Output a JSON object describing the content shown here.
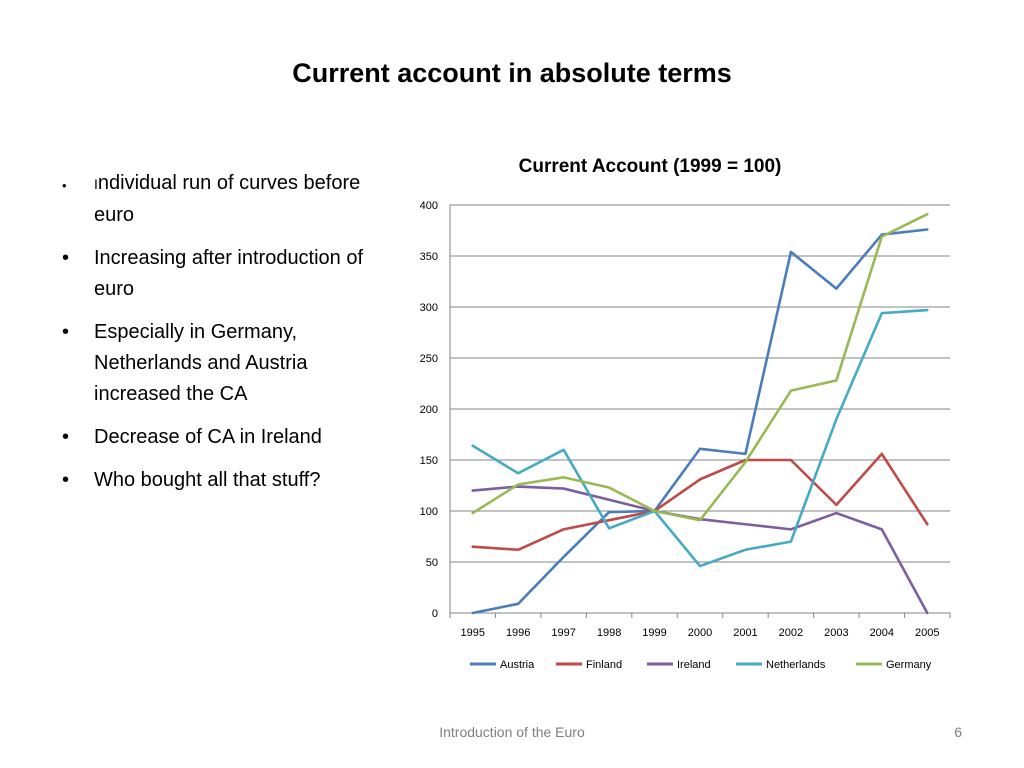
{
  "slide": {
    "title": "Current account in absolute terms",
    "bullets": [
      {
        "lead": "I",
        "text": "ndividual run of curves before euro"
      },
      {
        "text": "Increasing after introduction of euro"
      },
      {
        "text": "Especially in Germany, Netherlands and Austria increased the CA"
      },
      {
        "text": "Decrease of CA in Ireland"
      },
      {
        "text": "Who bought all that stuff?"
      }
    ],
    "footer": "Introduction of the Euro",
    "page_number": "6"
  },
  "chart_data": {
    "type": "line",
    "title": "Current Account (1999 = 100)",
    "xlabel": "",
    "ylabel": "",
    "x": [
      "1995",
      "1996",
      "1997",
      "1998",
      "1999",
      "2000",
      "2001",
      "2002",
      "2003",
      "2004",
      "2005"
    ],
    "ylim": [
      0,
      400
    ],
    "yticks": [
      0,
      50,
      100,
      150,
      200,
      250,
      300,
      350,
      400
    ],
    "grid": true,
    "legend_position": "bottom",
    "series": [
      {
        "name": "Austria",
        "color": "#4a7ebb",
        "values": [
          0,
          9,
          55,
          99,
          100,
          161,
          156,
          354,
          318,
          371,
          376
        ]
      },
      {
        "name": "Finland",
        "color": "#be4b48",
        "values": [
          65,
          62,
          82,
          91,
          100,
          131,
          150,
          150,
          106,
          156,
          87
        ]
      },
      {
        "name": "Ireland",
        "color": "#7d5fa0",
        "values": [
          120,
          124,
          122,
          111,
          100,
          92,
          87,
          82,
          98,
          82,
          0
        ]
      },
      {
        "name": "Netherlands",
        "color": "#46aac5",
        "values": [
          164,
          137,
          160,
          83,
          100,
          46,
          62,
          70,
          190,
          294,
          297
        ]
      },
      {
        "name": "Germany",
        "color": "#98b954",
        "values": [
          98,
          126,
          133,
          123,
          100,
          91,
          148,
          218,
          228,
          369,
          391
        ]
      }
    ]
  }
}
